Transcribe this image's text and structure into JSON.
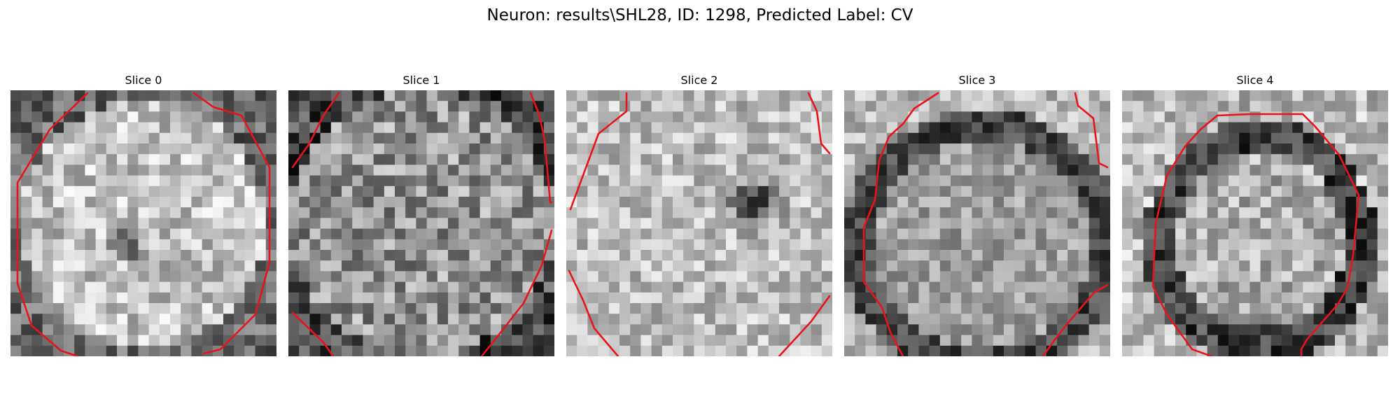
{
  "figure_title": "Neuron: results\\SHL28, ID: 1298, Predicted Label: CV",
  "contour_color": "#e8141c",
  "slices": [
    {
      "title": "Slice 0",
      "texture_seed": 11,
      "mean_level": 0.76,
      "contrast": 0.22
    },
    {
      "title": "Slice 1",
      "texture_seed": 23,
      "mean_level": 0.58,
      "contrast": 0.26
    },
    {
      "title": "Slice 2",
      "texture_seed": 37,
      "mean_level": 0.74,
      "contrast": 0.2
    },
    {
      "title": "Slice 3",
      "texture_seed": 41,
      "mean_level": 0.62,
      "contrast": 0.18
    },
    {
      "title": "Slice 4",
      "texture_seed": 53,
      "mean_level": 0.68,
      "contrast": 0.22
    }
  ]
}
